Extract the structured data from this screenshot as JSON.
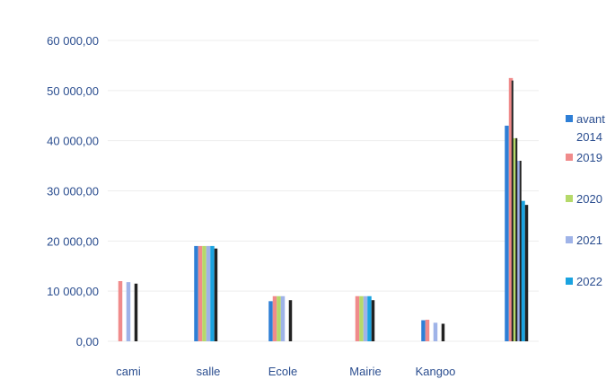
{
  "chart_data": {
    "type": "bar",
    "title": "",
    "xlabel": "",
    "ylabel": "",
    "categories": [
      "cami",
      "salle",
      "Ecole",
      "Mairie",
      "Kangoo",
      ""
    ],
    "ylim": [
      0,
      60000
    ],
    "yticks": [
      0,
      10000,
      20000,
      30000,
      40000,
      50000,
      60000
    ],
    "ytick_labels": [
      "0,00",
      "10 000,00",
      "20 000,00",
      "30 000,00",
      "40 000,00",
      "50 000,00",
      "60 000,00"
    ],
    "grid": true,
    "legend_position": "right",
    "series": [
      {
        "name": "avant 2014",
        "color": "#2e7fd6",
        "values": [
          0,
          19000,
          8000,
          0,
          4200,
          43000
        ]
      },
      {
        "name": "2019",
        "color": "#f08b8b",
        "values": [
          12000,
          19000,
          9000,
          9000,
          4300,
          52500
        ]
      },
      {
        "name": "2020",
        "color": "#b5d96a",
        "values": [
          0,
          19000,
          9000,
          9000,
          0,
          40500
        ]
      },
      {
        "name": "2021",
        "color": "#9fb3e8",
        "values": [
          11800,
          19000,
          9000,
          9000,
          3700,
          36000
        ]
      },
      {
        "name": "2022",
        "color": "#1aa3e0",
        "values": [
          0,
          19000,
          0,
          9000,
          0,
          28000
        ]
      },
      {
        "name": "",
        "color": "#222222",
        "values": [
          11500,
          18500,
          8200,
          8200,
          3500,
          27200
        ],
        "shadow_of": [
          3,
          4,
          3,
          4,
          3,
          4
        ]
      }
    ],
    "extra_shadow_bars": [
      {
        "category": 5,
        "values": [
          52000,
          40500,
          36000
        ]
      }
    ]
  }
}
